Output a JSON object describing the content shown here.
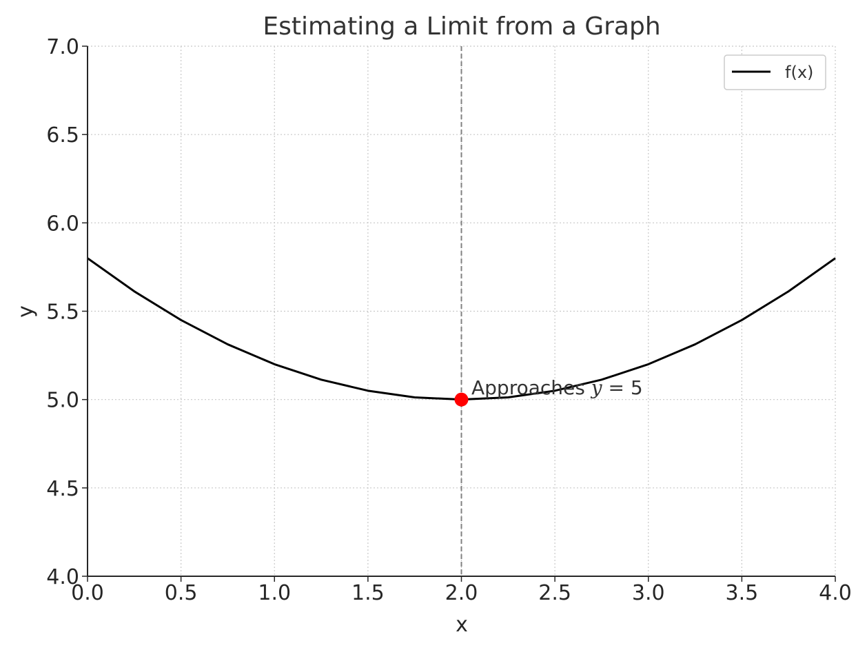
{
  "chart_data": {
    "type": "line",
    "title": "Estimating a Limit from a Graph",
    "xlabel": "x",
    "ylabel": "y",
    "xlim": [
      0.0,
      4.0
    ],
    "ylim": [
      4.0,
      7.0
    ],
    "x_ticks": [
      "0.0",
      "0.5",
      "1.0",
      "1.5",
      "2.0",
      "2.5",
      "3.0",
      "3.5",
      "4.0"
    ],
    "y_ticks": [
      "4.0",
      "4.5",
      "5.0",
      "5.5",
      "6.0",
      "6.5",
      "7.0"
    ],
    "grid": true,
    "legend_position": "top-right",
    "series": [
      {
        "name": "f(x)",
        "color": "#000000",
        "x": [
          0.0,
          0.25,
          0.5,
          0.75,
          1.0,
          1.25,
          1.5,
          1.75,
          2.0,
          2.25,
          2.5,
          2.75,
          3.0,
          3.25,
          3.5,
          3.75,
          4.0
        ],
        "y": [
          5.8,
          5.6125,
          5.45,
          5.3125,
          5.2,
          5.1125,
          5.05,
          5.0125,
          5.0,
          5.0125,
          5.05,
          5.1125,
          5.2,
          5.3125,
          5.45,
          5.6125,
          5.8
        ]
      }
    ],
    "vertical_line": {
      "x": 2.0,
      "color": "#808080",
      "style": "dashed"
    },
    "highlight_point": {
      "x": 2.0,
      "y": 5.0,
      "color": "#ff0000"
    },
    "annotation": {
      "text": "Approaches ",
      "math_var": "y",
      "math_rest": " = 5",
      "x": 2.0,
      "y": 5.0
    }
  }
}
